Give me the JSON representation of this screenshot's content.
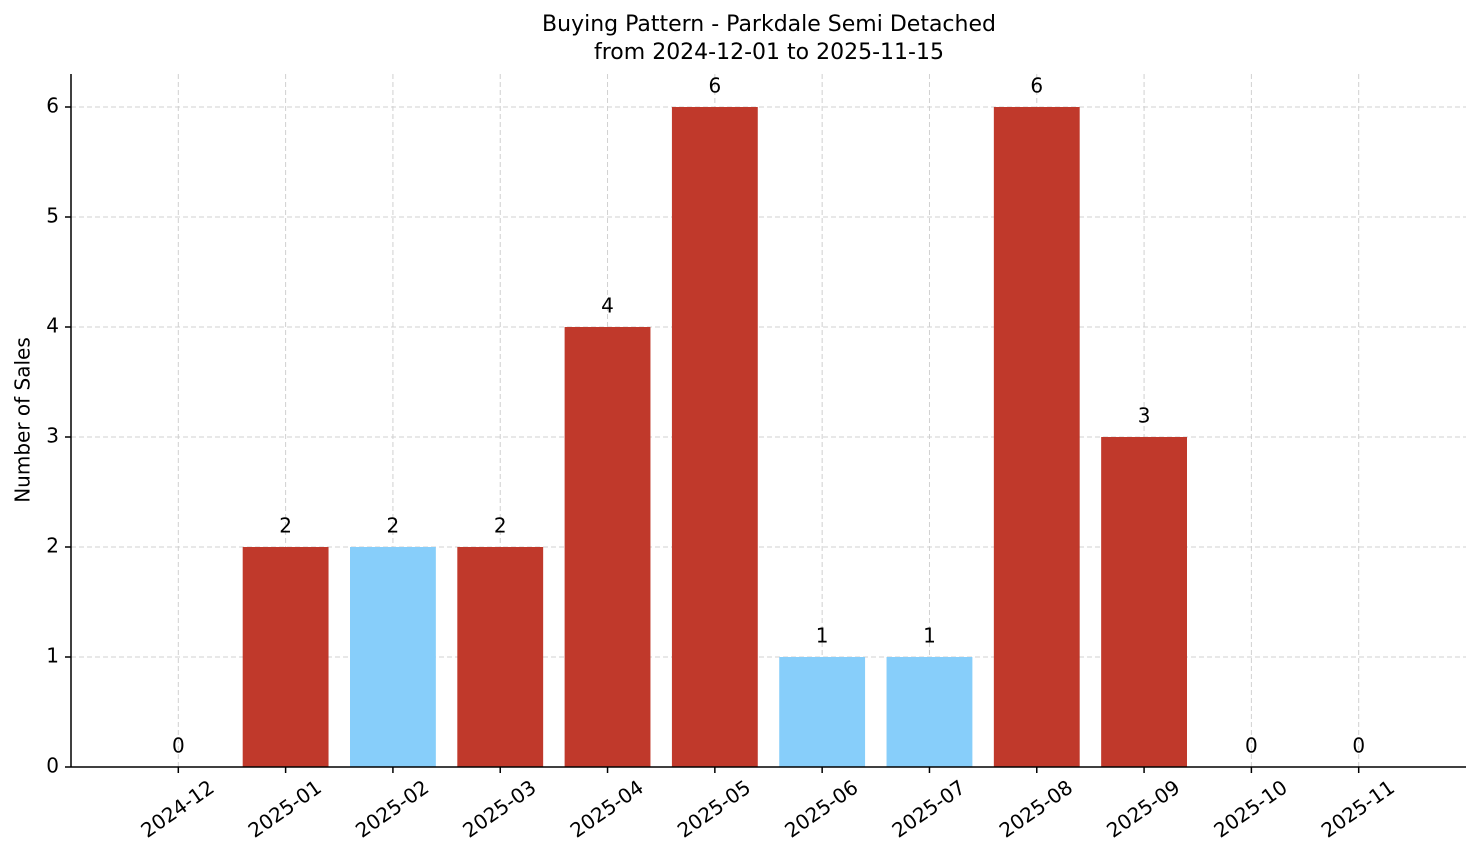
{
  "chart_data": {
    "type": "bar",
    "title": "Buying Pattern - Parkdale Semi Detached",
    "subtitle": "from 2024-12-01 to 2025-11-15",
    "y_label": "Number of Sales",
    "categories": [
      "2024-12",
      "2025-01",
      "2025-02",
      "2025-03",
      "2025-04",
      "2025-05",
      "2025-06",
      "2025-07",
      "2025-08",
      "2025-09",
      "2025-10",
      "2025-11"
    ],
    "values": [
      0,
      2,
      2,
      2,
      4,
      6,
      1,
      1,
      6,
      3,
      0,
      0
    ],
    "colors": [
      "#c0392b",
      "#c0392b",
      "#87cefa",
      "#c0392b",
      "#c0392b",
      "#c0392b",
      "#87cefa",
      "#87cefa",
      "#c0392b",
      "#c0392b",
      "#c0392b",
      "#c0392b"
    ],
    "ylim": [
      0,
      6.3
    ],
    "yticks": [
      0,
      1,
      2,
      3,
      4,
      5,
      6
    ],
    "grid": true
  }
}
